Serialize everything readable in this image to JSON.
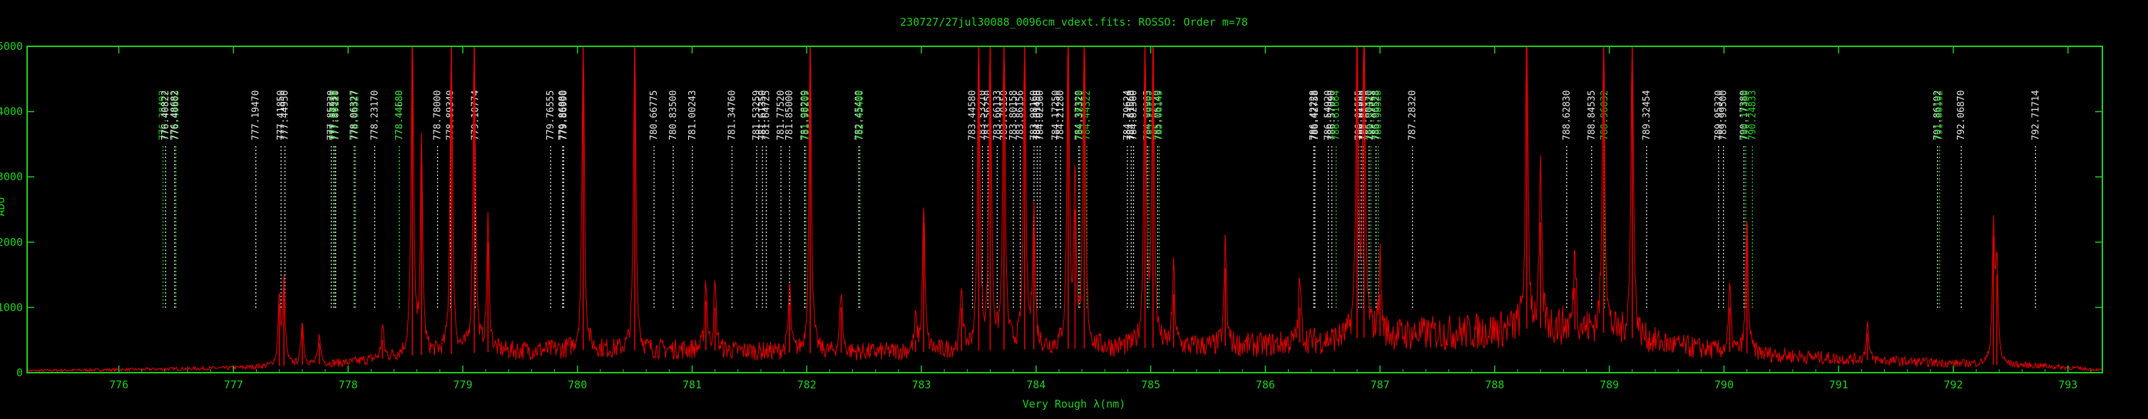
{
  "chart_data": {
    "type": "line",
    "title": "230727/27jul30088_0096cm_vdext.fits: ROSSO: Order m=78",
    "xlabel": "Very Rough λ(nm)",
    "ylabel": "ADU",
    "xlim": [
      775.2,
      793.3
    ],
    "ylim": [
      0,
      5000
    ],
    "x_ticks": [
      "776",
      "777",
      "778",
      "779",
      "780",
      "781",
      "782",
      "783",
      "784",
      "785",
      "786",
      "787",
      "788",
      "789",
      "790",
      "791",
      "792",
      "793"
    ],
    "y_ticks": [
      "0",
      "1000",
      "2000",
      "3000",
      "4000",
      "5000"
    ],
    "grid": false,
    "colors": {
      "frame": "#1fd11f",
      "spectrum": "#e00000",
      "line_white": "#e8e8e8",
      "line_green": "#1fd11f"
    },
    "series": [
      {
        "continuum": [
          [
            775.2,
            30
          ],
          [
            776.0,
            45
          ],
          [
            777.0,
            70
          ],
          [
            777.5,
            110
          ],
          [
            778.0,
            150
          ],
          [
            778.5,
            260
          ],
          [
            779.0,
            300
          ],
          [
            779.5,
            330
          ],
          [
            780.0,
            350
          ],
          [
            780.5,
            340
          ],
          [
            781.0,
            350
          ],
          [
            782.0,
            300
          ],
          [
            783.0,
            320
          ],
          [
            784.0,
            360
          ],
          [
            785.0,
            380
          ],
          [
            786.0,
            420
          ],
          [
            786.5,
            480
          ],
          [
            787.0,
            560
          ],
          [
            787.5,
            600
          ],
          [
            788.0,
            640
          ],
          [
            788.5,
            700
          ],
          [
            789.0,
            600
          ],
          [
            789.5,
            430
          ],
          [
            790.0,
            320
          ],
          [
            791.0,
            210
          ],
          [
            792.0,
            140
          ],
          [
            792.8,
            100
          ],
          [
            793.3,
            40
          ]
        ],
        "peaks": [
          [
            777.4,
            1050
          ],
          [
            777.44,
            1300
          ],
          [
            777.6,
            700
          ],
          [
            777.75,
            450
          ],
          [
            778.3,
            500
          ],
          [
            778.56,
            5000
          ],
          [
            778.64,
            3200
          ],
          [
            778.9,
            5000
          ],
          [
            779.1,
            5000
          ],
          [
            779.22,
            2000
          ],
          [
            780.05,
            5000
          ],
          [
            780.5,
            5000
          ],
          [
            781.12,
            1100
          ],
          [
            781.2,
            1000
          ],
          [
            781.85,
            1050
          ],
          [
            782.03,
            5000
          ],
          [
            782.3,
            1000
          ],
          [
            782.95,
            500
          ],
          [
            783.02,
            2300
          ],
          [
            783.35,
            1000
          ],
          [
            783.5,
            5000
          ],
          [
            783.6,
            5000
          ],
          [
            783.72,
            5000
          ],
          [
            783.9,
            5000
          ],
          [
            783.98,
            2200
          ],
          [
            784.28,
            5000
          ],
          [
            784.34,
            2500
          ],
          [
            784.42,
            5000
          ],
          [
            784.95,
            5000
          ],
          [
            785.02,
            5000
          ],
          [
            785.2,
            1200
          ],
          [
            785.65,
            1600
          ],
          [
            786.3,
            1000
          ],
          [
            786.8,
            5000
          ],
          [
            786.86,
            5000
          ],
          [
            787.0,
            1200
          ],
          [
            788.28,
            5000
          ],
          [
            788.4,
            2300
          ],
          [
            788.7,
            1300
          ],
          [
            788.95,
            5000
          ],
          [
            789.2,
            5000
          ],
          [
            790.05,
            1000
          ],
          [
            790.2,
            2100
          ],
          [
            791.25,
            600
          ],
          [
            792.35,
            2100
          ],
          [
            792.38,
            1500
          ]
        ]
      }
    ],
    "annotations": [
      {
        "label": "776.38492",
        "x": 776.385,
        "color": "green"
      },
      {
        "label": "776.40822",
        "x": 776.408,
        "color": "white"
      },
      {
        "label": "776.49803",
        "x": 776.498,
        "color": "green"
      },
      {
        "label": "776.48682",
        "x": 776.487,
        "color": "white"
      },
      {
        "label": "777.19470",
        "x": 777.195,
        "color": "white"
      },
      {
        "label": "777.41850",
        "x": 777.415,
        "color": "white"
      },
      {
        "label": "777.44950",
        "x": 777.449,
        "color": "white"
      },
      {
        "label": "777.87530",
        "x": 777.875,
        "color": "white"
      },
      {
        "label": "777.85330",
        "x": 777.853,
        "color": "white"
      },
      {
        "label": "777.89120",
        "x": 777.891,
        "color": "white"
      },
      {
        "label": "777.88120",
        "x": 777.881,
        "color": "green"
      },
      {
        "label": "778.06527",
        "x": 778.065,
        "color": "green"
      },
      {
        "label": "778.06327",
        "x": 778.053,
        "color": "white"
      },
      {
        "label": "778.23170",
        "x": 778.232,
        "color": "white"
      },
      {
        "label": "778.44680",
        "x": 778.447,
        "color": "white"
      },
      {
        "label": "778.44580",
        "x": 778.446,
        "color": "green"
      },
      {
        "label": "778.78000",
        "x": 778.78,
        "color": "white"
      },
      {
        "label": "778.89340",
        "x": 778.893,
        "color": "white"
      },
      {
        "label": "779.10774",
        "x": 779.108,
        "color": "white"
      },
      {
        "label": "779.76555",
        "x": 779.766,
        "color": "white"
      },
      {
        "label": "779.86880",
        "x": 779.87,
        "color": "white"
      },
      {
        "label": "779.86990",
        "x": 779.88,
        "color": "white"
      },
      {
        "label": "780.66775",
        "x": 780.668,
        "color": "white"
      },
      {
        "label": "780.83500",
        "x": 780.835,
        "color": "white"
      },
      {
        "label": "781.00243",
        "x": 781.002,
        "color": "white"
      },
      {
        "label": "781.34760",
        "x": 781.348,
        "color": "white"
      },
      {
        "label": "781.53259",
        "x": 781.563,
        "color": "white"
      },
      {
        "label": "781.61350",
        "x": 781.614,
        "color": "white"
      },
      {
        "label": "781.64725",
        "x": 781.647,
        "color": "white"
      },
      {
        "label": "781.77520",
        "x": 781.775,
        "color": "white"
      },
      {
        "label": "781.85000",
        "x": 781.85,
        "color": "white"
      },
      {
        "label": "781.98209",
        "x": 781.982,
        "color": "white"
      },
      {
        "label": "781.99209",
        "x": 781.992,
        "color": "green"
      },
      {
        "label": "782.45400",
        "x": 782.454,
        "color": "white"
      },
      {
        "label": "782.45400",
        "x": 782.464,
        "color": "green"
      },
      {
        "label": "783.44580",
        "x": 783.446,
        "color": "white"
      },
      {
        "label": "783.53210",
        "x": 783.532,
        "color": "white"
      },
      {
        "label": "783.56250",
        "x": 783.58,
        "color": "white"
      },
      {
        "label": "783.66133",
        "x": 783.661,
        "color": "white"
      },
      {
        "label": "783.70150",
        "x": 783.72,
        "color": "white"
      },
      {
        "label": "783.80158",
        "x": 783.802,
        "color": "white"
      },
      {
        "label": "783.86156",
        "x": 783.862,
        "color": "white"
      },
      {
        "label": "783.98160",
        "x": 783.982,
        "color": "white"
      },
      {
        "label": "784.01450",
        "x": 784.01,
        "color": "white"
      },
      {
        "label": "784.02360",
        "x": 784.035,
        "color": "white"
      },
      {
        "label": "784.17250",
        "x": 784.173,
        "color": "white"
      },
      {
        "label": "784.21280",
        "x": 784.213,
        "color": "white"
      },
      {
        "label": "784.37320",
        "x": 784.373,
        "color": "white"
      },
      {
        "label": "784.38320",
        "x": 784.383,
        "color": "green"
      },
      {
        "label": "784.44322",
        "x": 784.443,
        "color": "green"
      },
      {
        "label": "784.79624",
        "x": 784.796,
        "color": "white"
      },
      {
        "label": "784.81560",
        "x": 784.83,
        "color": "white"
      },
      {
        "label": "784.82560",
        "x": 784.85,
        "color": "white"
      },
      {
        "label": "784.96965",
        "x": 784.97,
        "color": "white"
      },
      {
        "label": "784.96965",
        "x": 784.985,
        "color": "green"
      },
      {
        "label": "785.06149",
        "x": 785.061,
        "color": "white"
      },
      {
        "label": "785.06149",
        "x": 785.075,
        "color": "green"
      },
      {
        "label": "786.42228",
        "x": 786.422,
        "color": "white"
      },
      {
        "label": "786.42758",
        "x": 786.432,
        "color": "white"
      },
      {
        "label": "786.54920",
        "x": 786.549,
        "color": "white"
      },
      {
        "label": "786.57090",
        "x": 786.58,
        "color": "white"
      },
      {
        "label": "786.61664",
        "x": 786.617,
        "color": "green"
      },
      {
        "label": "786.81555",
        "x": 786.815,
        "color": "white"
      },
      {
        "label": "786.81555",
        "x": 786.835,
        "color": "white"
      },
      {
        "label": "786.85500",
        "x": 786.855,
        "color": "white"
      },
      {
        "label": "786.90420",
        "x": 786.904,
        "color": "white"
      },
      {
        "label": "786.91033",
        "x": 786.92,
        "color": "green"
      },
      {
        "label": "786.96528",
        "x": 786.965,
        "color": "white"
      },
      {
        "label": "786.98528",
        "x": 786.985,
        "color": "green"
      },
      {
        "label": "787.28320",
        "x": 787.283,
        "color": "white"
      },
      {
        "label": "788.62830",
        "x": 788.628,
        "color": "white"
      },
      {
        "label": "788.84535",
        "x": 788.845,
        "color": "white"
      },
      {
        "label": "788.96032",
        "x": 788.96,
        "color": "green"
      },
      {
        "label": "789.32454",
        "x": 789.325,
        "color": "white"
      },
      {
        "label": "789.95320",
        "x": 789.953,
        "color": "white"
      },
      {
        "label": "789.99500",
        "x": 789.995,
        "color": "white"
      },
      {
        "label": "790.17380",
        "x": 790.174,
        "color": "white"
      },
      {
        "label": "790.17380",
        "x": 790.19,
        "color": "green"
      },
      {
        "label": "790.24833",
        "x": 790.248,
        "color": "green"
      },
      {
        "label": "791.86192",
        "x": 791.862,
        "color": "white"
      },
      {
        "label": "791.86192",
        "x": 791.88,
        "color": "green"
      },
      {
        "label": "792.06870",
        "x": 792.069,
        "color": "white"
      },
      {
        "label": "792.71714",
        "x": 792.717,
        "color": "white"
      }
    ]
  }
}
